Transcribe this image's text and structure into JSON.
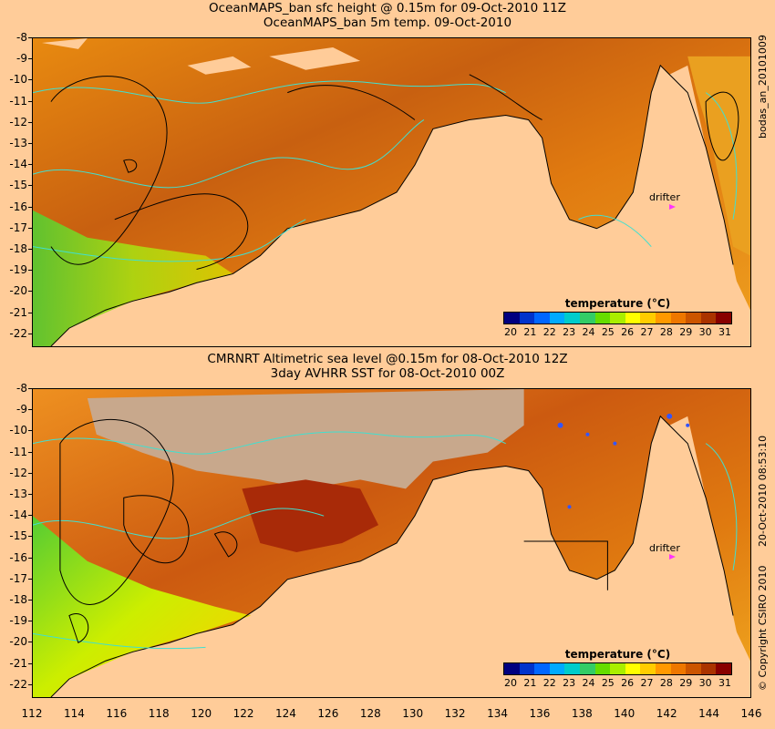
{
  "top": {
    "title_line1": "OceanMAPS_ban sfc height @ 0.15m for 09-Oct-2010 11Z",
    "title_line2": "OceanMAPS_ban 5m temp. 09-Oct-2010",
    "side_label": "bodas_an_20101009",
    "colorbar_title": "temperature (°C)",
    "drifter_label": "drifter"
  },
  "bottom": {
    "title_line1": "CMRNRT Altimetric sea level  @0.15m  for 08-Oct-2010 12Z",
    "title_line2": "3day AVHRR SST for 08-Oct-2010 00Z",
    "side_label": "20-Oct-2010 08:53:10",
    "copyright": "© Copyright CSIRO 2010",
    "colorbar_title": "temperature (°C)",
    "drifter_label": "drifter"
  },
  "y_ticks": [
    "-8",
    "-9",
    "-10",
    "-11",
    "-12",
    "-13",
    "-14",
    "-15",
    "-16",
    "-17",
    "-18",
    "-19",
    "-20",
    "-21",
    "-22"
  ],
  "x_ticks": [
    "112",
    "114",
    "116",
    "118",
    "120",
    "122",
    "124",
    "126",
    "128",
    "130",
    "132",
    "134",
    "136",
    "138",
    "140",
    "142",
    "144",
    "146"
  ],
  "colorbar_labels": [
    "20",
    "21",
    "22",
    "23",
    "24",
    "25",
    "26",
    "27",
    "28",
    "29",
    "30",
    "31"
  ],
  "colorbar_colors": [
    "#000080",
    "#0033cc",
    "#0066ff",
    "#00aaff",
    "#00cccc",
    "#33cc66",
    "#66dd00",
    "#aaee00",
    "#ffff00",
    "#ffcc00",
    "#ff9900",
    "#ee7700",
    "#cc5500",
    "#aa3300",
    "#880000"
  ],
  "colors": {
    "land": "#ffcc99",
    "no_data": "#c8a88c",
    "coast_contours": "#40e0d0",
    "sfc_height_contours": "#000000",
    "drifter": "#ff33ff"
  }
}
